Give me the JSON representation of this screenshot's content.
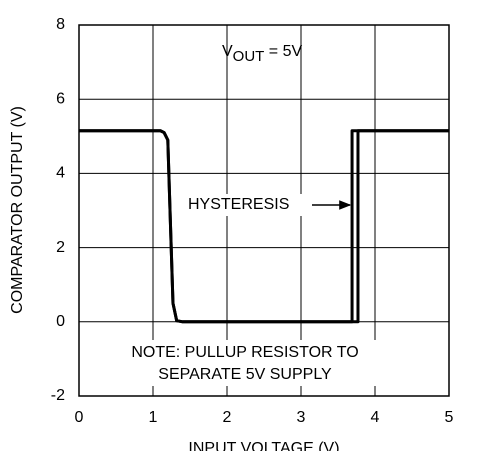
{
  "chart_data": {
    "type": "line",
    "x_label": "INPUT VOLTAGE (V)",
    "y_label": "COMPARATOR OUTPUT (V)",
    "annotations": {
      "vout": {
        "main": "V",
        "sub": "OUT",
        "rest": " = 5V"
      },
      "hysteresis": "HYSTERESIS",
      "note": [
        "NOTE: PULLUP RESISTOR TO",
        "SEPARATE 5V SUPPLY"
      ]
    },
    "series": [
      {
        "color": "#000000",
        "x": [
          0,
          1.1,
          1.15,
          1.2,
          1.23,
          1.27,
          1.32,
          1.4,
          3.69,
          3.69,
          5
        ],
        "values": [
          5.15,
          5.15,
          5.1,
          4.9,
          3,
          0.5,
          0.03,
          0,
          0,
          5.15,
          5.15
        ]
      },
      {
        "color": "#000000",
        "x": [
          0,
          1.1,
          1.15,
          1.2,
          1.23,
          1.27,
          1.32,
          1.4,
          3.77,
          3.77,
          5
        ],
        "values": [
          5.15,
          5.15,
          5.1,
          4.9,
          3,
          0.5,
          0.03,
          0,
          0,
          5.15,
          5.15
        ]
      }
    ],
    "xlim": [
      0,
      5
    ],
    "xticks": [
      0,
      1,
      2,
      3,
      4,
      5
    ],
    "ylim": [
      -2,
      8
    ],
    "yticks": [
      -2,
      0,
      2,
      4,
      6,
      8
    ],
    "grid": true
  }
}
